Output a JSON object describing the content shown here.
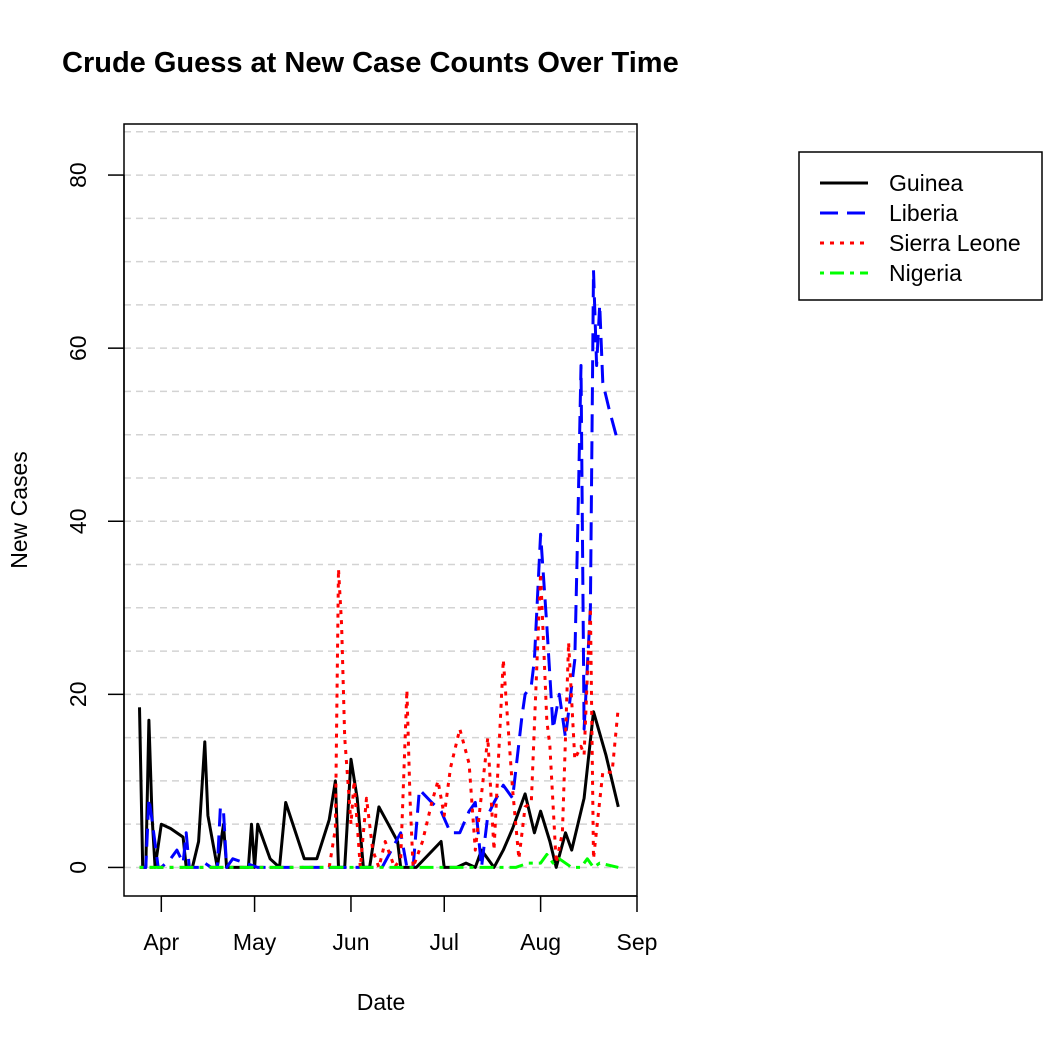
{
  "chart_data": {
    "type": "line",
    "title": "Crude Guess at New Case Counts Over Time",
    "xlabel": "Date",
    "ylabel": "New Cases",
    "x_axis": {
      "type": "date",
      "range": [
        "2014-03-20",
        "2014-09-01"
      ],
      "ticks": [
        {
          "date": "2014-04-01",
          "label": "Apr"
        },
        {
          "date": "2014-05-01",
          "label": "May"
        },
        {
          "date": "2014-06-01",
          "label": "Jun"
        },
        {
          "date": "2014-07-01",
          "label": "Jul"
        },
        {
          "date": "2014-08-01",
          "label": "Aug"
        },
        {
          "date": "2014-09-01",
          "label": "Sep"
        }
      ]
    },
    "y_axis": {
      "range": [
        -3.3,
        85.9
      ],
      "ticks": [
        0,
        20,
        40,
        60,
        80
      ],
      "gridlines": [
        0,
        5,
        10,
        15,
        20,
        25,
        30,
        35,
        40,
        45,
        50,
        55,
        60,
        65,
        70,
        75,
        80,
        85
      ]
    },
    "grid": true,
    "legend": "top-right",
    "series": [
      {
        "name": "Guinea",
        "color": "#000000",
        "dash": "solid",
        "points": [
          [
            "2014-03-25",
            18.5
          ],
          [
            "2014-03-26",
            0
          ],
          [
            "2014-03-27",
            0
          ],
          [
            "2014-03-28",
            17
          ],
          [
            "2014-03-29",
            6
          ],
          [
            "2014-03-30",
            0
          ],
          [
            "2014-04-01",
            5
          ],
          [
            "2014-04-04",
            4.5
          ],
          [
            "2014-04-08",
            3.5
          ],
          [
            "2014-04-09",
            0
          ],
          [
            "2014-04-11",
            0
          ],
          [
            "2014-04-13",
            3
          ],
          [
            "2014-04-15",
            14.5
          ],
          [
            "2014-04-16",
            6
          ],
          [
            "2014-04-19",
            0
          ],
          [
            "2014-04-21",
            5
          ],
          [
            "2014-04-22",
            0
          ],
          [
            "2014-04-25",
            0
          ],
          [
            "2014-04-29",
            0
          ],
          [
            "2014-04-30",
            5
          ],
          [
            "2014-05-01",
            0
          ],
          [
            "2014-05-02",
            5
          ],
          [
            "2014-05-06",
            1
          ],
          [
            "2014-05-09",
            0
          ],
          [
            "2014-05-11",
            7.5
          ],
          [
            "2014-05-17",
            1
          ],
          [
            "2014-05-21",
            1
          ],
          [
            "2014-05-25",
            5.5
          ],
          [
            "2014-05-27",
            10
          ],
          [
            "2014-05-28",
            0
          ],
          [
            "2014-05-30",
            0
          ],
          [
            "2014-06-01",
            12.5
          ],
          [
            "2014-06-03",
            8
          ],
          [
            "2014-06-05",
            0
          ],
          [
            "2014-06-07",
            0
          ],
          [
            "2014-06-10",
            7
          ],
          [
            "2014-06-13",
            5
          ],
          [
            "2014-06-16",
            3
          ],
          [
            "2014-06-17",
            0
          ],
          [
            "2014-06-22",
            0
          ],
          [
            "2014-06-30",
            3
          ],
          [
            "2014-07-01",
            0
          ],
          [
            "2014-07-05",
            0
          ],
          [
            "2014-07-08",
            0.5
          ],
          [
            "2014-07-11",
            0
          ],
          [
            "2014-07-13",
            2
          ],
          [
            "2014-07-17",
            0
          ],
          [
            "2014-07-20",
            2
          ],
          [
            "2014-07-23",
            4.5
          ],
          [
            "2014-07-27",
            8.5
          ],
          [
            "2014-07-29",
            5.5
          ],
          [
            "2014-07-30",
            4
          ],
          [
            "2014-08-01",
            6.5
          ],
          [
            "2014-08-04",
            3
          ],
          [
            "2014-08-06",
            0
          ],
          [
            "2014-08-09",
            4
          ],
          [
            "2014-08-11",
            2
          ],
          [
            "2014-08-15",
            8
          ],
          [
            "2014-08-18",
            18
          ],
          [
            "2014-08-22",
            13
          ],
          [
            "2014-08-26",
            7
          ]
        ]
      },
      {
        "name": "Liberia",
        "color": "#0000ff",
        "dash": "dashed",
        "points": [
          [
            "2014-03-25",
            0
          ],
          [
            "2014-03-27",
            0
          ],
          [
            "2014-03-28",
            8
          ],
          [
            "2014-03-29",
            5.5
          ],
          [
            "2014-03-31",
            0
          ],
          [
            "2014-04-01",
            0
          ],
          [
            "2014-04-04",
            1
          ],
          [
            "2014-04-06",
            2
          ],
          [
            "2014-04-08",
            0.5
          ],
          [
            "2014-04-09",
            4
          ],
          [
            "2014-04-10",
            0
          ],
          [
            "2014-04-12",
            0
          ],
          [
            "2014-04-14",
            0
          ],
          [
            "2014-04-15",
            0.5
          ],
          [
            "2014-04-17",
            0
          ],
          [
            "2014-04-19",
            0
          ],
          [
            "2014-04-20",
            7
          ],
          [
            "2014-04-21",
            6.5
          ],
          [
            "2014-04-22",
            0
          ],
          [
            "2014-04-24",
            1
          ],
          [
            "2014-04-28",
            0.5
          ],
          [
            "2014-05-02",
            0
          ],
          [
            "2014-06-05",
            0
          ],
          [
            "2014-06-08",
            0
          ],
          [
            "2014-06-11",
            0
          ],
          [
            "2014-06-14",
            2
          ],
          [
            "2014-06-17",
            4
          ],
          [
            "2014-06-19",
            0
          ],
          [
            "2014-06-21",
            0
          ],
          [
            "2014-06-23",
            9
          ],
          [
            "2014-06-27",
            7.5
          ],
          [
            "2014-06-30",
            6.5
          ],
          [
            "2014-07-03",
            4
          ],
          [
            "2014-07-06",
            4
          ],
          [
            "2014-07-09",
            6.5
          ],
          [
            "2014-07-11",
            7.5
          ],
          [
            "2014-07-13",
            0
          ],
          [
            "2014-07-15",
            6
          ],
          [
            "2014-07-17",
            7.5
          ],
          [
            "2014-07-20",
            9.5
          ],
          [
            "2014-07-23",
            8
          ],
          [
            "2014-07-26",
            17.5
          ],
          [
            "2014-07-27",
            20
          ],
          [
            "2014-07-29",
            21
          ],
          [
            "2014-07-30",
            24
          ],
          [
            "2014-08-01",
            38.5
          ],
          [
            "2014-08-03",
            28
          ],
          [
            "2014-08-05",
            16
          ],
          [
            "2014-08-07",
            20
          ],
          [
            "2014-08-09",
            15
          ],
          [
            "2014-08-12",
            24
          ],
          [
            "2014-08-13",
            40
          ],
          [
            "2014-08-14",
            58
          ],
          [
            "2014-08-15",
            16
          ],
          [
            "2014-08-17",
            30
          ],
          [
            "2014-08-18",
            69
          ],
          [
            "2014-08-19",
            58
          ],
          [
            "2014-08-20",
            65
          ],
          [
            "2014-08-21",
            56
          ],
          [
            "2014-08-23",
            53
          ],
          [
            "2014-08-26",
            49
          ]
        ]
      },
      {
        "name": "Sierra Leone",
        "color": "#ff0000",
        "dash": "dotted",
        "points": [
          [
            "2014-03-25",
            0
          ],
          [
            "2014-05-25",
            0
          ],
          [
            "2014-05-27",
            4.5
          ],
          [
            "2014-05-28",
            34.5
          ],
          [
            "2014-05-29",
            28
          ],
          [
            "2014-05-30",
            15
          ],
          [
            "2014-06-01",
            5
          ],
          [
            "2014-06-02",
            10
          ],
          [
            "2014-06-04",
            0
          ],
          [
            "2014-06-06",
            8
          ],
          [
            "2014-06-08",
            2
          ],
          [
            "2014-06-10",
            0
          ],
          [
            "2014-06-12",
            3
          ],
          [
            "2014-06-15",
            0
          ],
          [
            "2014-06-17",
            1
          ],
          [
            "2014-06-19",
            20.5
          ],
          [
            "2014-06-20",
            8
          ],
          [
            "2014-06-21",
            0
          ],
          [
            "2014-06-24",
            3
          ],
          [
            "2014-06-27",
            7.5
          ],
          [
            "2014-06-29",
            10
          ],
          [
            "2014-07-01",
            6
          ],
          [
            "2014-07-03",
            11.5
          ],
          [
            "2014-07-06",
            16
          ],
          [
            "2014-07-09",
            12
          ],
          [
            "2014-07-11",
            2
          ],
          [
            "2014-07-15",
            15
          ],
          [
            "2014-07-17",
            2
          ],
          [
            "2014-07-20",
            24
          ],
          [
            "2014-07-23",
            9
          ],
          [
            "2014-07-25",
            1
          ],
          [
            "2014-07-27",
            7
          ],
          [
            "2014-07-29",
            7.5
          ],
          [
            "2014-08-01",
            34
          ],
          [
            "2014-08-03",
            17
          ],
          [
            "2014-08-04",
            14
          ],
          [
            "2014-08-06",
            0.5
          ],
          [
            "2014-08-08",
            4
          ],
          [
            "2014-08-10",
            26
          ],
          [
            "2014-08-12",
            12.5
          ],
          [
            "2014-08-14",
            14
          ],
          [
            "2014-08-15",
            13
          ],
          [
            "2014-08-16",
            22
          ],
          [
            "2014-08-17",
            30
          ],
          [
            "2014-08-18",
            1
          ],
          [
            "2014-08-21",
            11
          ],
          [
            "2014-08-24",
            11
          ],
          [
            "2014-08-26",
            18.5
          ]
        ]
      },
      {
        "name": "Nigeria",
        "color": "#00ff00",
        "dash": "dotdash",
        "points": [
          [
            "2014-03-25",
            0
          ],
          [
            "2014-07-24",
            0
          ],
          [
            "2014-07-28",
            0.5
          ],
          [
            "2014-08-01",
            0.5
          ],
          [
            "2014-08-03",
            1.5
          ],
          [
            "2014-08-05",
            0.5
          ],
          [
            "2014-08-07",
            1
          ],
          [
            "2014-08-11",
            0
          ],
          [
            "2014-08-14",
            0
          ],
          [
            "2014-08-16",
            1
          ],
          [
            "2014-08-18",
            0
          ],
          [
            "2014-08-20",
            0.5
          ],
          [
            "2014-08-26",
            0
          ]
        ]
      }
    ]
  }
}
